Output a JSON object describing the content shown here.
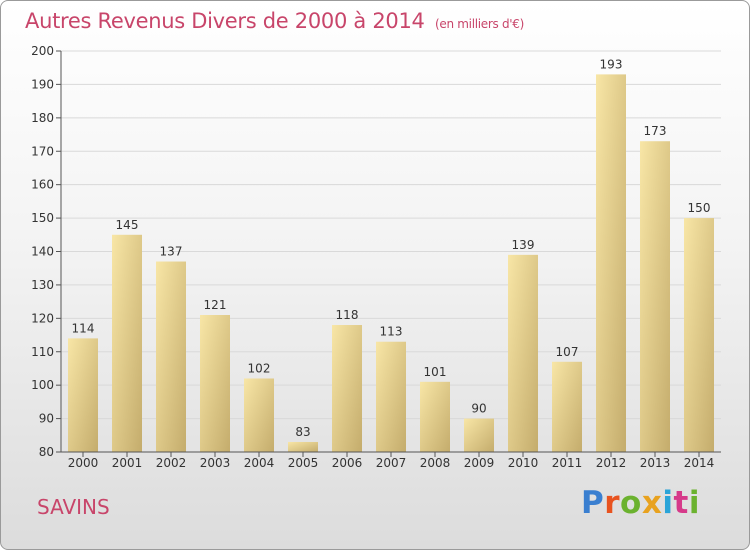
{
  "header": {
    "title": "Autres Revenus Divers de 2000 à 2014",
    "unit": "(en milliers d'€)"
  },
  "footer": {
    "commune": "SAVINS",
    "logo_text": "Proxiti",
    "logo_colors": [
      "#3a7fd0",
      "#e8531f",
      "#6bb22f",
      "#e8a21f",
      "#2aa4d8",
      "#d63a8a",
      "#6bb22f"
    ]
  },
  "colors": {
    "title": "#c8456a",
    "bar_light": "#f8e6a6",
    "bar_dark": "#c4ac6c",
    "grid": "#d9d9d9",
    "axis": "#555555"
  },
  "chart_data": {
    "type": "bar",
    "categories": [
      "2000",
      "2001",
      "2002",
      "2003",
      "2004",
      "2005",
      "2006",
      "2007",
      "2008",
      "2009",
      "2010",
      "2011",
      "2012",
      "2013",
      "2014"
    ],
    "values": [
      114,
      145,
      137,
      121,
      102,
      83,
      118,
      113,
      101,
      90,
      139,
      107,
      193,
      173,
      150
    ],
    "data_labels": [
      "114",
      "145",
      "137",
      "121",
      "102",
      "83",
      "118",
      "113",
      "101",
      "90",
      "139",
      "107",
      "193",
      "173",
      "150"
    ],
    "yticks": [
      "80",
      "90",
      "100",
      "110",
      "120",
      "130",
      "140",
      "150",
      "160",
      "170",
      "180",
      "190",
      "200"
    ],
    "ylim": [
      80,
      200
    ],
    "grid": true
  }
}
